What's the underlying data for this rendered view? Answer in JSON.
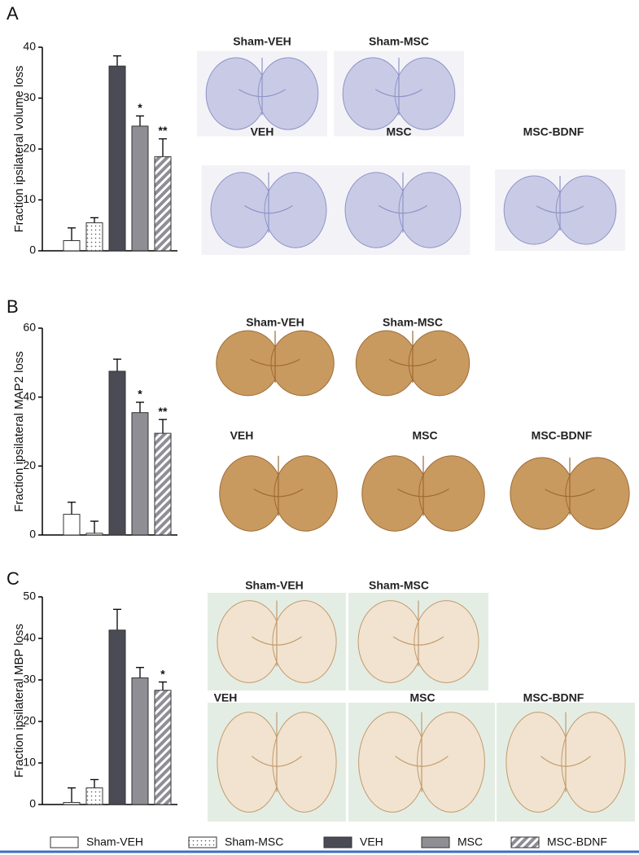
{
  "legend": [
    {
      "name": "Sham-VEH",
      "fill": "#ffffff",
      "pattern": "none"
    },
    {
      "name": "Sham-MSC",
      "fill": "#ffffff",
      "pattern": "dots"
    },
    {
      "name": "VEH",
      "fill": "#4b4b55",
      "pattern": "none"
    },
    {
      "name": "MSC",
      "fill": "#8e8e94",
      "pattern": "none"
    },
    {
      "name": "MSC-BDNF",
      "fill": "#9a9aa2",
      "pattern": "hatch"
    }
  ],
  "chart_data": [
    {
      "type": "bar",
      "panel": "A",
      "y_label": "Fraction ipsilateral volume loss",
      "ylim": [
        0,
        40
      ],
      "yticks": [
        0,
        10,
        20,
        30,
        40
      ],
      "values": [
        2,
        5.5,
        36.3,
        24.5,
        18.5
      ],
      "errors": [
        2.5,
        1,
        2,
        2,
        3.5
      ],
      "annotations": [
        null,
        null,
        null,
        "*",
        "**"
      ],
      "image_labels": [
        "Sham-VEH",
        "Sham-MSC",
        "VEH",
        "MSC",
        "MSC-BDNF"
      ]
    },
    {
      "type": "bar",
      "panel": "B",
      "y_label": "Fraction ipsilateral MAP2 loss",
      "ylim": [
        0,
        60
      ],
      "yticks": [
        0,
        20,
        40,
        60
      ],
      "values": [
        6,
        0.5,
        47.5,
        35.5,
        29.5
      ],
      "errors": [
        3.5,
        3.5,
        3.5,
        3,
        4
      ],
      "annotations": [
        null,
        null,
        null,
        "*",
        "**"
      ],
      "image_labels": [
        "Sham-VEH",
        "Sham-MSC",
        "VEH",
        "MSC",
        "MSC-BDNF"
      ]
    },
    {
      "type": "bar",
      "panel": "C",
      "y_label": "Fraction ipsilateral MBP loss",
      "ylim": [
        0,
        50
      ],
      "yticks": [
        0,
        10,
        20,
        30,
        40,
        50
      ],
      "values": [
        0.5,
        4,
        42,
        30.5,
        27.5
      ],
      "errors": [
        3.5,
        2,
        5,
        2.5,
        2
      ],
      "annotations": [
        null,
        null,
        null,
        null,
        "*"
      ],
      "image_labels": [
        "Sham-VEH",
        "Sham-MSC",
        "VEH",
        "MSC",
        "MSC-BDNF"
      ]
    }
  ]
}
